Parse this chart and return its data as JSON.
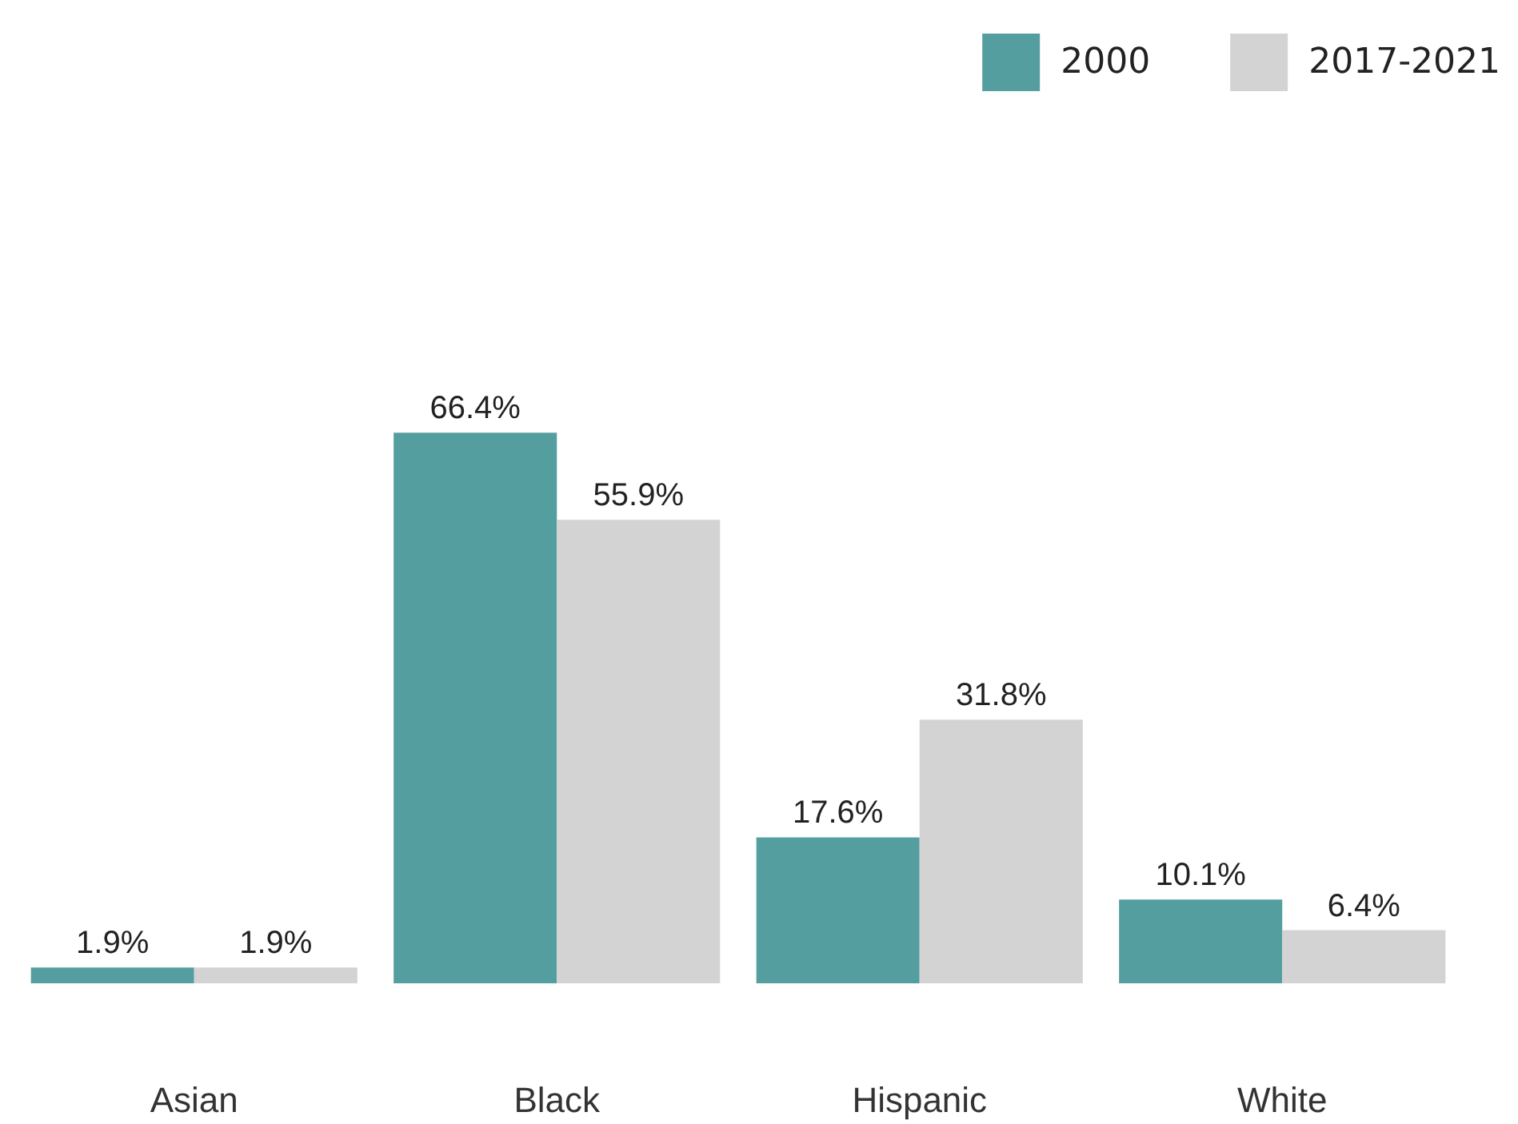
{
  "chart_data": {
    "type": "bar",
    "categories": [
      "Asian",
      "Black",
      "Hispanic",
      "White"
    ],
    "series": [
      {
        "name": "2000",
        "color": "#559e9f",
        "values": [
          1.9,
          66.4,
          17.6,
          10.1
        ],
        "value_labels": [
          "1.9%",
          "66.4%",
          "17.6%",
          "10.1%"
        ]
      },
      {
        "name": "2017-2021",
        "color": "#d3d3d3",
        "values": [
          1.9,
          55.9,
          31.8,
          6.4
        ],
        "value_labels": [
          "1.9%",
          "55.9%",
          "31.8%",
          "6.4%"
        ]
      }
    ],
    "legend": "top right"
  }
}
